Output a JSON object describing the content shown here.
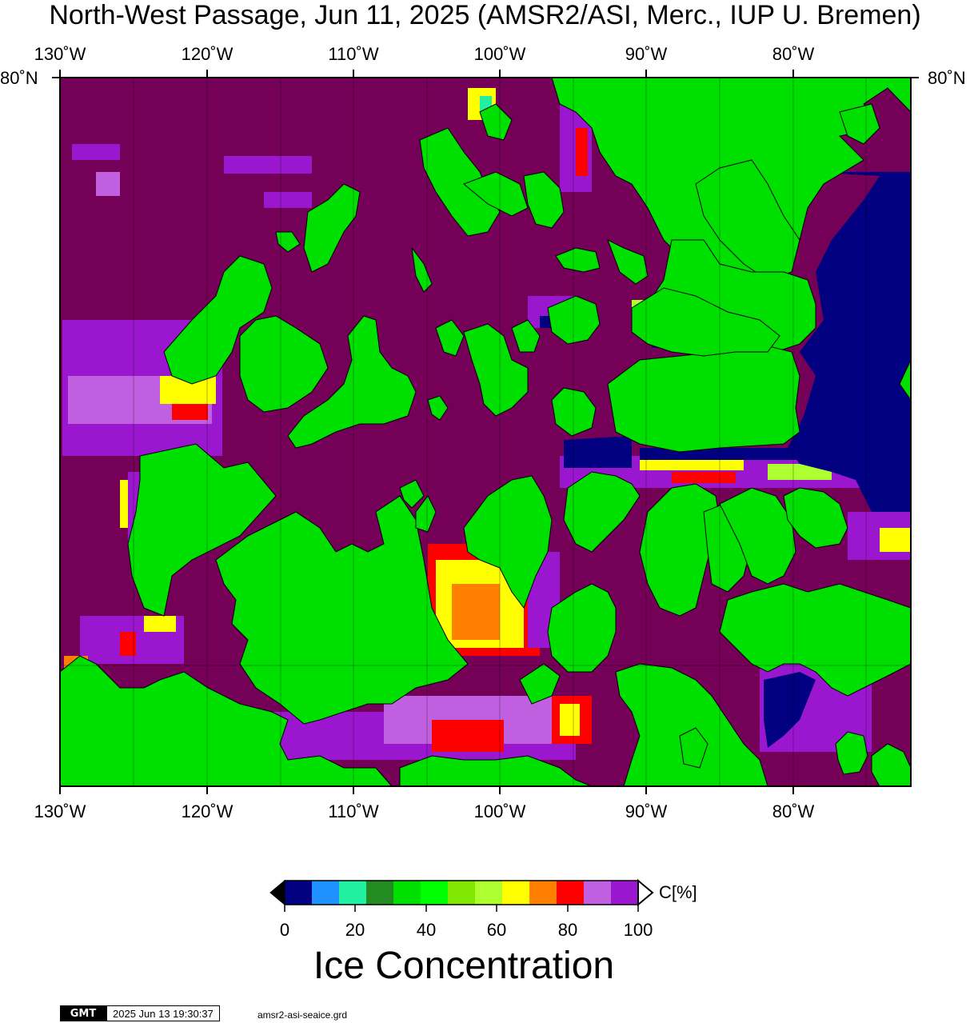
{
  "title": "North-West Passage, Jun 11, 2025 (AMSR2/ASI, Merc., IUP U. Bremen)",
  "map": {
    "longitude_ticks_top": [
      "130˚W",
      "120˚W",
      "110˚W",
      "100˚W",
      "90˚W",
      "80˚W"
    ],
    "longitude_ticks_bottom": [
      "130˚W",
      "120˚W",
      "110˚W",
      "100˚W",
      "90˚W",
      "80˚W"
    ],
    "latitude_tick_left": "80˚N",
    "latitude_tick_right": "80˚N",
    "colors": {
      "land": "#00e000",
      "ice_100": "#750057",
      "ice_90": "#9b17cf",
      "ice_80": "#ff0000",
      "ice_70": "#ffff00",
      "open_water": "#000080"
    }
  },
  "colorbar": {
    "title": "Ice Concentration",
    "unit": "C[%]",
    "tick_labels": [
      "0",
      "20",
      "40",
      "60",
      "80",
      "100"
    ],
    "colors": [
      "#000080",
      "#1e90ff",
      "#20f0a0",
      "#228b22",
      "#00e000",
      "#00ff00",
      "#80e800",
      "#adff2f",
      "#ffff00",
      "#ff8000",
      "#ff0000",
      "#c060e0",
      "#9b17cf"
    ]
  },
  "footer": {
    "logo": "GMT",
    "timestamp": "2025 Jun 13 19:30:37",
    "grid_file": "amsr2-asi-seaice.grd"
  }
}
